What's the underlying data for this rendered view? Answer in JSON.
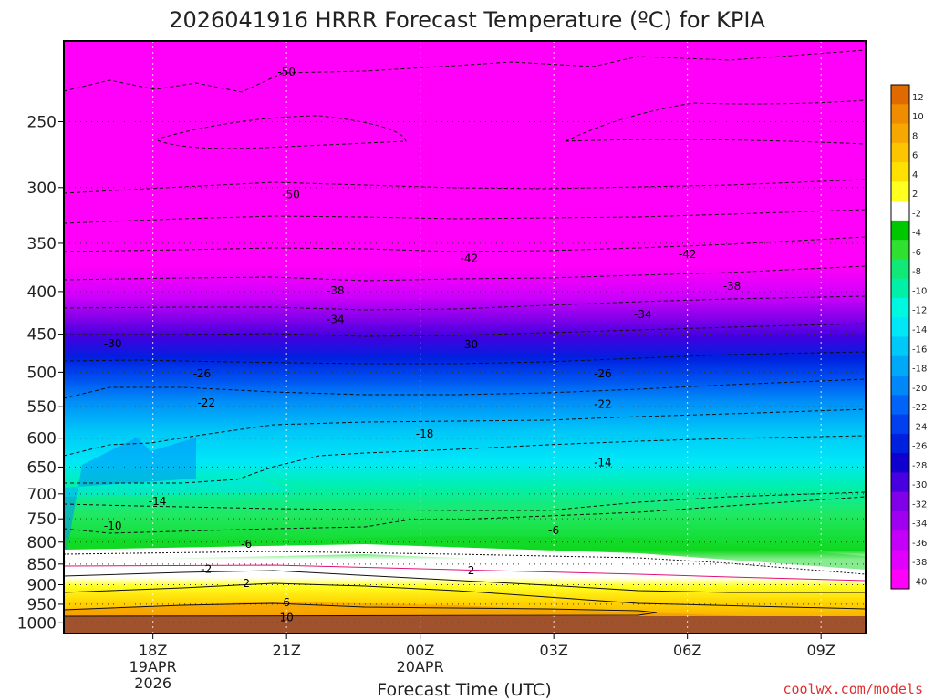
{
  "chart_data": {
    "type": "heatmap",
    "title": "2026041916 HRRR Forecast Temperature (ºC) for KPIA",
    "xlabel": "Forecast Time (UTC)",
    "ylabel": "",
    "x_ticks": [
      {
        "hour": 18,
        "lines": [
          "18Z",
          "19APR",
          "2026"
        ]
      },
      {
        "hour": 21,
        "lines": [
          "21Z"
        ]
      },
      {
        "hour": 24,
        "lines": [
          "00Z",
          "20APR"
        ]
      },
      {
        "hour": 27,
        "lines": [
          "03Z"
        ]
      },
      {
        "hour": 30,
        "lines": [
          "06Z"
        ]
      },
      {
        "hour": 33,
        "lines": [
          "09Z"
        ]
      }
    ],
    "x_range": [
      16,
      34
    ],
    "y_ticks": [
      250,
      300,
      350,
      400,
      450,
      500,
      550,
      600,
      650,
      700,
      750,
      800,
      850,
      900,
      950,
      1000
    ],
    "y_range": [
      1030,
      200
    ],
    "y_scale": "log",
    "colorbar": {
      "labels": [
        "12",
        "10",
        "8",
        "6",
        "4",
        "2",
        "-2",
        "-4",
        "-6",
        "-8",
        "-10",
        "-12",
        "-14",
        "-16",
        "-18",
        "-20",
        "-22",
        "-24",
        "-26",
        "-28",
        "-30",
        "-32",
        "-34",
        "-36",
        "-38",
        "-40"
      ],
      "colors": [
        "#e06a00",
        "#f08c00",
        "#f7a800",
        "#fdc400",
        "#ffe000",
        "#ffff20",
        "#ffffff",
        "#00c800",
        "#30e030",
        "#10e878",
        "#00f0a8",
        "#00f8e0",
        "#00e8f8",
        "#00c8f8",
        "#00a8f8",
        "#0088f8",
        "#0064f8",
        "#0040f0",
        "#0020e0",
        "#1000d0",
        "#4800e0",
        "#8000e8",
        "#a000f0",
        "#c400f8",
        "#e000fc",
        "#ff00f8"
      ]
    },
    "contour_labels": [
      {
        "text": "-50",
        "hour": 21.0,
        "p": 218
      },
      {
        "text": "-50",
        "hour": 21.1,
        "p": 306
      },
      {
        "text": "-42",
        "hour": 25.1,
        "p": 365
      },
      {
        "text": "-42",
        "hour": 30.0,
        "p": 361
      },
      {
        "text": "-38",
        "hour": 22.1,
        "p": 399
      },
      {
        "text": "-38",
        "hour": 31.0,
        "p": 394
      },
      {
        "text": "-34",
        "hour": 22.1,
        "p": 432
      },
      {
        "text": "-34",
        "hour": 29.0,
        "p": 426
      },
      {
        "text": "-30",
        "hour": 17.1,
        "p": 462
      },
      {
        "text": "-30",
        "hour": 25.1,
        "p": 463
      },
      {
        "text": "-26",
        "hour": 19.1,
        "p": 502
      },
      {
        "text": "-26",
        "hour": 28.1,
        "p": 502
      },
      {
        "text": "-22",
        "hour": 19.2,
        "p": 544
      },
      {
        "text": "-22",
        "hour": 28.1,
        "p": 546
      },
      {
        "text": "-18",
        "hour": 24.1,
        "p": 593
      },
      {
        "text": "-14",
        "hour": 28.1,
        "p": 642
      },
      {
        "text": "-14",
        "hour": 18.1,
        "p": 715
      },
      {
        "text": "-10",
        "hour": 17.1,
        "p": 765
      },
      {
        "text": "-6",
        "hour": 27.0,
        "p": 775
      },
      {
        "text": "-6",
        "hour": 20.1,
        "p": 804
      },
      {
        "text": "-2",
        "hour": 19.2,
        "p": 862
      },
      {
        "text": "-2",
        "hour": 25.1,
        "p": 866
      },
      {
        "text": "2",
        "hour": 20.1,
        "p": 897
      },
      {
        "text": "6",
        "hour": 21.0,
        "p": 945
      },
      {
        "text": "10",
        "hour": 21.0,
        "p": 985
      }
    ]
  },
  "credit": "coolwx.com/models"
}
